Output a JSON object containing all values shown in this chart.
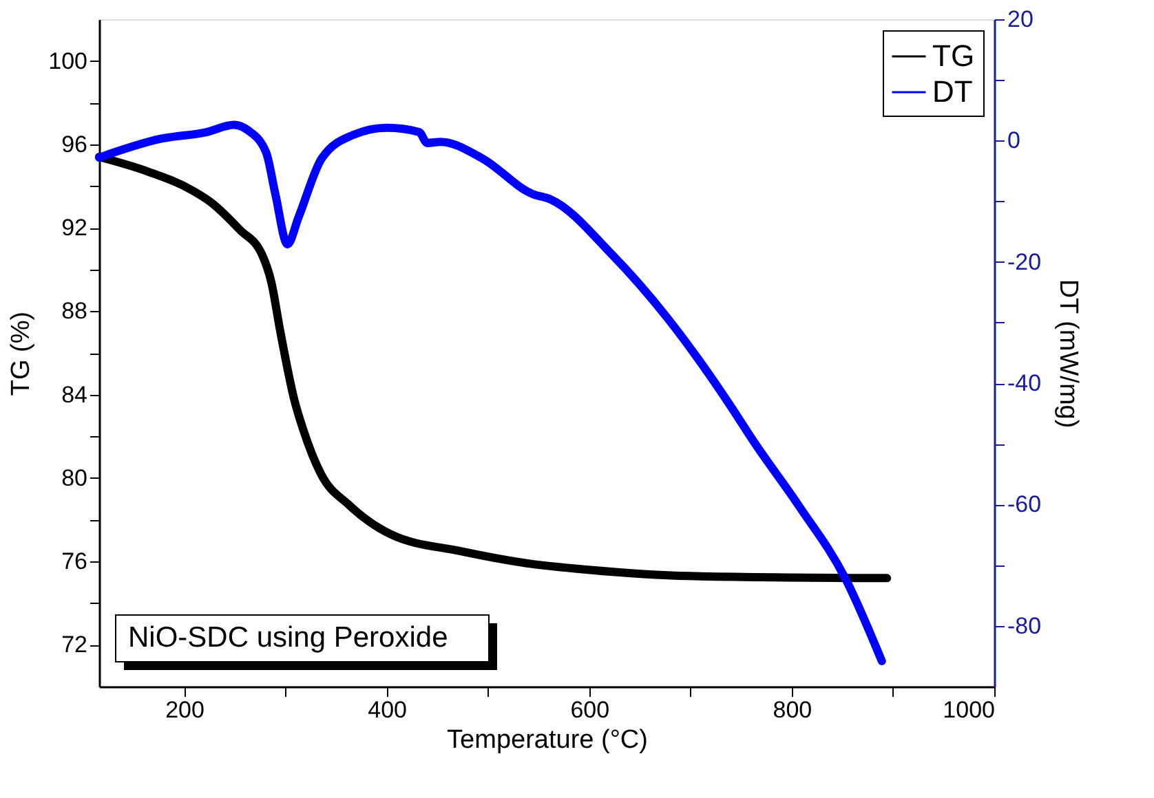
{
  "chart_data": {
    "type": "line",
    "xlabel": "Temperature (°C)",
    "ylabel": "TG (%)",
    "y2label": "DT (mW/mg)",
    "xlim": [
      116,
      1000
    ],
    "xticks": [
      200,
      {
        "value": 300,
        "label": null
      },
      400,
      {
        "value": 500,
        "label": null
      },
      600,
      {
        "value": 700,
        "label": null
      },
      800,
      {
        "value": 900,
        "label": null
      },
      1000
    ],
    "ylim": [
      70,
      102
    ],
    "yticks": [
      72,
      {
        "value": 74,
        "label": null
      },
      76,
      {
        "value": 78,
        "label": null
      },
      80,
      {
        "value": 82,
        "label": null
      },
      84,
      {
        "value": 86,
        "label": null
      },
      88,
      {
        "value": 90,
        "label": null
      },
      92,
      {
        "value": 94,
        "label": null
      },
      96,
      {
        "value": 98,
        "label": null
      },
      100
    ],
    "y2lim": [
      -90,
      20
    ],
    "y2ticks": [
      -80,
      {
        "value": -70,
        "label": null
      },
      -60,
      {
        "value": -50,
        "label": null
      },
      -40,
      {
        "value": -30,
        "label": null
      },
      -20,
      {
        "value": -10,
        "label": null
      },
      0,
      {
        "value": 10,
        "label": null
      },
      20
    ],
    "series": [
      {
        "name": "TG",
        "color": "#000000",
        "x": [
          116,
          164,
          200,
          227,
          255,
          277,
          286,
          295,
          309,
          317,
          335,
          363,
          404,
          472,
          540,
          599,
          698,
          894
        ],
        "values": [
          95.4,
          94.7,
          94.0,
          93.2,
          91.9,
          90.7,
          89.4,
          87.0,
          83.7,
          82.4,
          80.2,
          78.7,
          77.3,
          76.5,
          75.9,
          75.6,
          75.3,
          75.2
        ]
      },
      {
        "name": "DT",
        "color": "#0000ff",
        "axis": "y2",
        "x": [
          116,
          177,
          222,
          249,
          263,
          281,
          290,
          302,
          313,
          336,
          368,
          400,
          432,
          440,
          453,
          494,
          544,
          562,
          622,
          677,
          739,
          762,
          807,
          853,
          889
        ],
        "values": [
          -2.8,
          0.3,
          1.4,
          2.6,
          1.7,
          -2.0,
          -8.8,
          -17.1,
          -12.6,
          -2.9,
          1.0,
          2.1,
          1.4,
          -0.4,
          -0.2,
          -2.9,
          -8.8,
          -9.7,
          -18.7,
          -29.2,
          -43.6,
          -49.5,
          -60.2,
          -72.2,
          -85.8
        ]
      }
    ],
    "legend": "top right",
    "grid": false,
    "marker": "none",
    "line_style": "solid",
    "annotations": [
      "NiO-SDC using Peroxide"
    ]
  }
}
